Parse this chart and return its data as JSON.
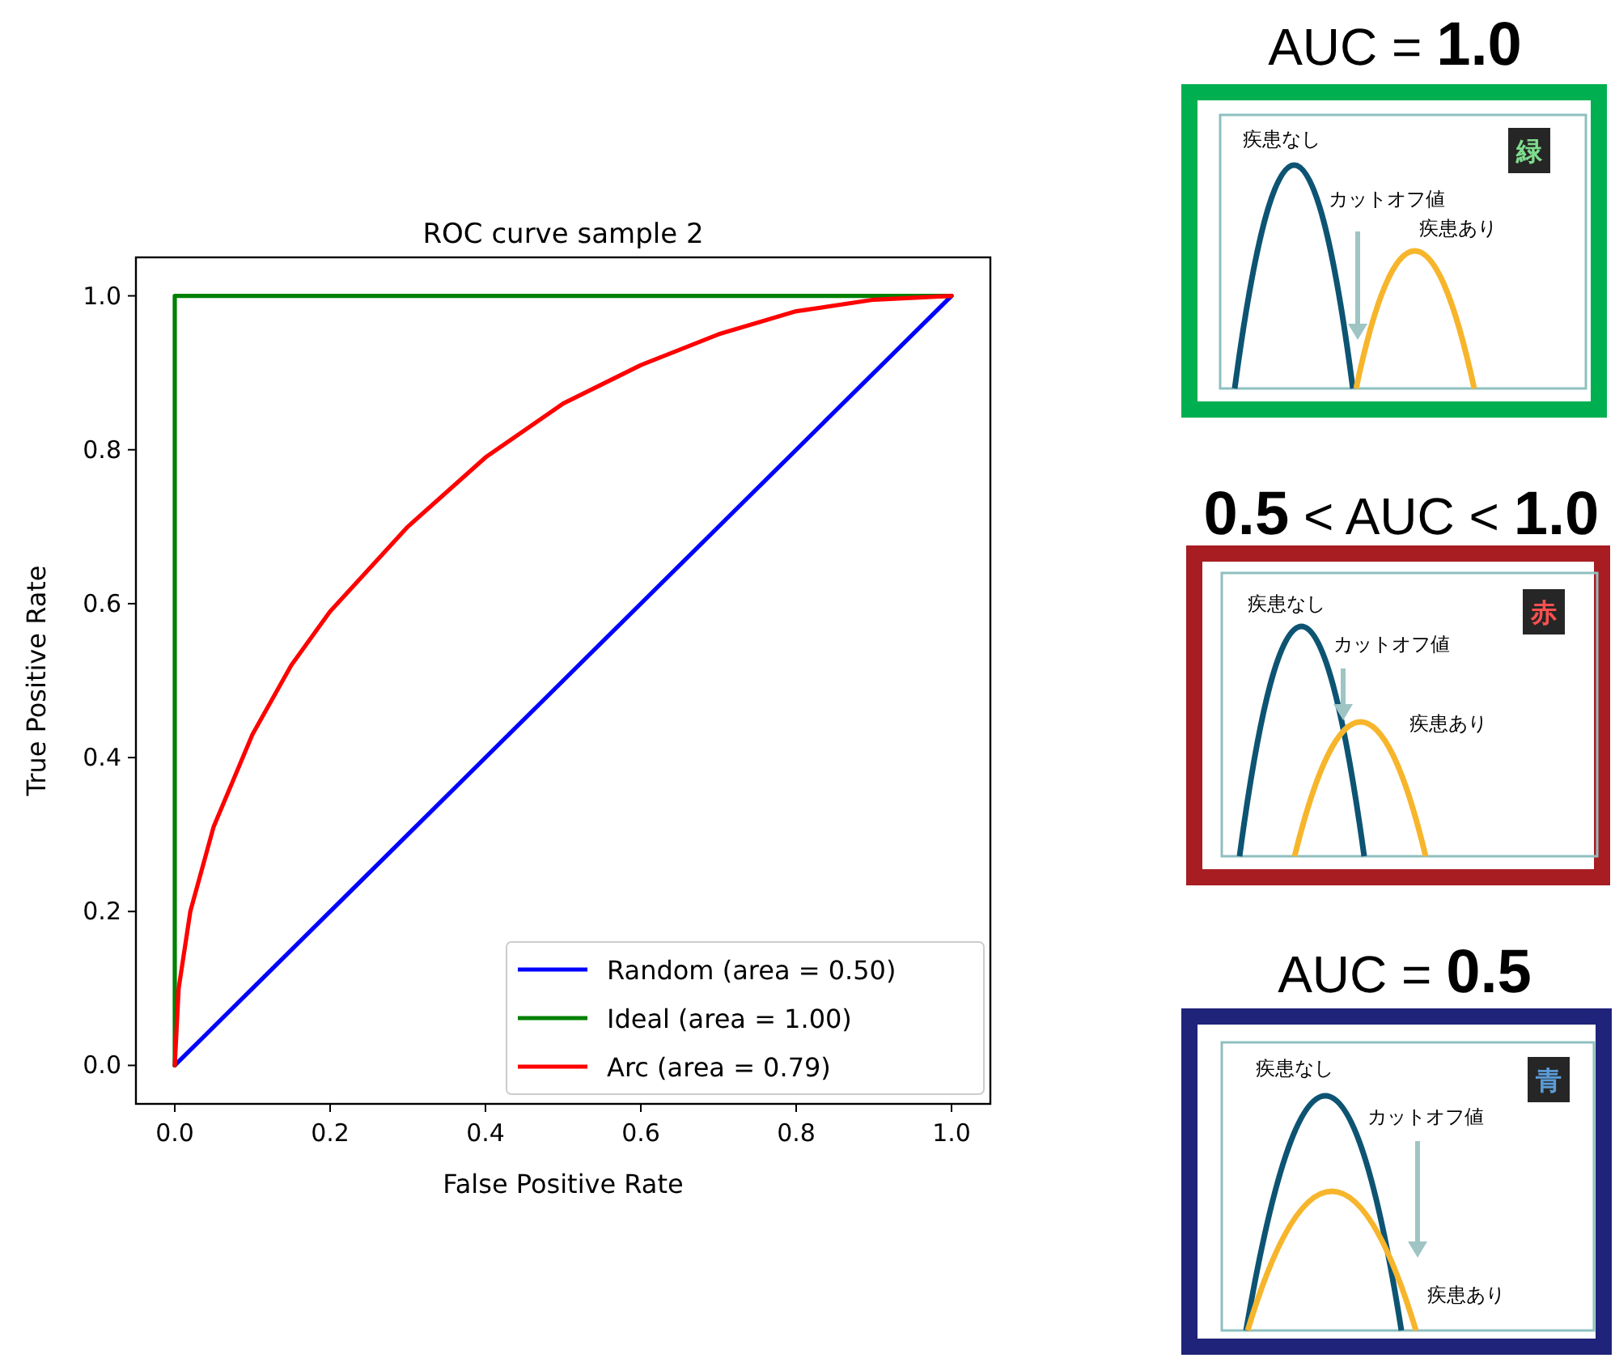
{
  "chart_data": {
    "type": "line",
    "title": "ROC curve sample 2",
    "xlabel": "False Positive Rate",
    "ylabel": "True Positive Rate",
    "xlim": [
      -0.05,
      1.05
    ],
    "ylim": [
      -0.05,
      1.05
    ],
    "xticks": [
      {
        "value": 0,
        "label": "0.0"
      },
      0.2,
      0.4,
      0.6,
      0.8,
      {
        "value": 1,
        "label": "1.0"
      }
    ],
    "yticks": [
      {
        "value": 0,
        "label": "0.0"
      },
      0.2,
      0.4,
      0.6,
      0.8,
      {
        "value": 1,
        "label": "1.0"
      }
    ],
    "grid": false,
    "legend": "bottom right",
    "marker": "none",
    "line_style": "solid",
    "series": [
      {
        "name": "Random (area = 0.50)",
        "color": "#0000ff",
        "x": [
          0,
          1
        ],
        "values": [
          0,
          1
        ]
      },
      {
        "name": "Ideal (area = 1.00)",
        "color": "#008000",
        "x": [
          0,
          0,
          1
        ],
        "values": [
          0,
          1,
          1
        ]
      },
      {
        "name": "Arc (area = 0.79)",
        "color": "#ff0000",
        "x": [
          0,
          0.005,
          0.02,
          0.05,
          0.1,
          0.15,
          0.2,
          0.3,
          0.4,
          0.5,
          0.6,
          0.7,
          0.8,
          0.9,
          1
        ],
        "values": [
          0,
          0.1,
          0.2,
          0.31,
          0.43,
          0.52,
          0.59,
          0.7,
          0.79,
          0.86,
          0.91,
          0.95,
          0.98,
          0.995,
          1
        ]
      }
    ],
    "annotations": [
      "AUC = 1.0",
      "疾患なし",
      "カットオフ値",
      "疾患あり",
      "緑",
      "0.5 < AUC < 1.0",
      "疾患なし",
      "カットオフ値",
      "疾患あり",
      "赤",
      "AUC = 0.5",
      "疾患なし",
      "カットオフ値",
      "疾患あり",
      "青"
    ]
  }
}
